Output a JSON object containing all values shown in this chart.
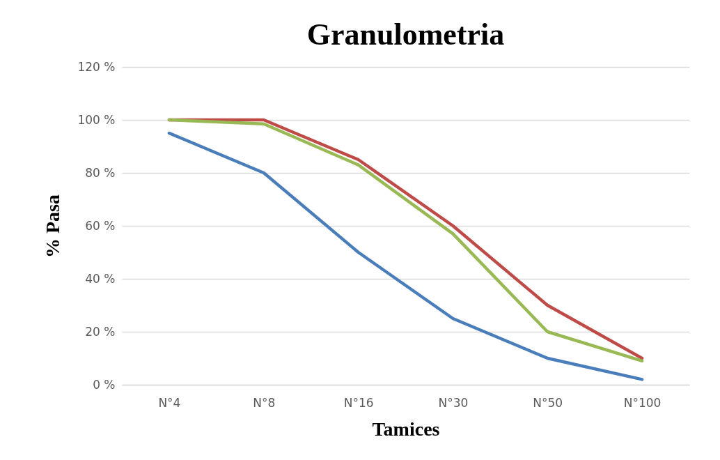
{
  "chart_data": {
    "type": "line",
    "title": "Granulometria",
    "xlabel": "Tamices",
    "ylabel": "% Pasa",
    "categories": [
      "N°4",
      "N°8",
      "N°16",
      "N°30",
      "N°50",
      "N°100"
    ],
    "series": [
      {
        "color": "#4a7ebb",
        "values": [
          95,
          80,
          50,
          25,
          10,
          2
        ]
      },
      {
        "color": "#be4b48",
        "values": [
          100,
          100,
          85,
          60,
          30,
          10
        ]
      },
      {
        "color": "#98b954",
        "values": [
          100,
          98.5,
          83,
          57,
          20,
          9
        ]
      }
    ],
    "ylim": [
      0,
      120
    ],
    "yticks": [
      {
        "value": 0,
        "label": "0 %"
      },
      {
        "value": 20,
        "label": "20 %"
      },
      {
        "value": 40,
        "label": "40 %"
      },
      {
        "value": 60,
        "label": "60 %"
      },
      {
        "value": 80,
        "label": "80 %"
      },
      {
        "value": 100,
        "label": "100 %"
      },
      {
        "value": 120,
        "label": "120 %"
      }
    ],
    "grid": "y",
    "legend": false,
    "marker": "none",
    "line_style": "solid"
  }
}
